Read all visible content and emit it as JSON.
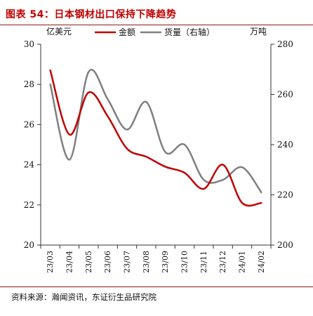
{
  "header": {
    "title": "图表 54：日本钢材出口保持下降趋势"
  },
  "footer": {
    "source": "资料来源：瀚闻资讯，东证衍生品研究院"
  },
  "colors": {
    "title": "#c00000",
    "rule": "#8c1a1a",
    "amount_series": "#c00000",
    "volume_series": "#7f7f7f"
  },
  "chart_data": {
    "type": "line",
    "categories": [
      "23/03",
      "23/04",
      "23/05",
      "23/06",
      "23/07",
      "23/08",
      "23/09",
      "23/10",
      "23/11",
      "23/12",
      "24/01",
      "24/02"
    ],
    "left_axis": {
      "unit": "亿美元",
      "ylim": [
        20,
        30
      ],
      "ticks": [
        20,
        22,
        24,
        26,
        28,
        30
      ]
    },
    "right_axis": {
      "unit": "万吨",
      "ylim": [
        200,
        280
      ],
      "ticks": [
        200,
        220,
        240,
        260,
        280
      ]
    },
    "series": [
      {
        "name": "金额",
        "axis": "left",
        "color": "#c00000",
        "values": [
          28.7,
          25.5,
          27.6,
          26.4,
          24.8,
          24.4,
          23.9,
          23.6,
          22.8,
          24.0,
          22.1,
          22.1
        ]
      },
      {
        "name": "货量（右轴）",
        "axis": "right",
        "color": "#7f7f7f",
        "values": [
          264,
          234,
          269,
          258,
          246,
          257,
          237,
          240,
          226,
          226,
          231,
          221
        ]
      }
    ],
    "legend_position": "top-center",
    "grid": false
  }
}
